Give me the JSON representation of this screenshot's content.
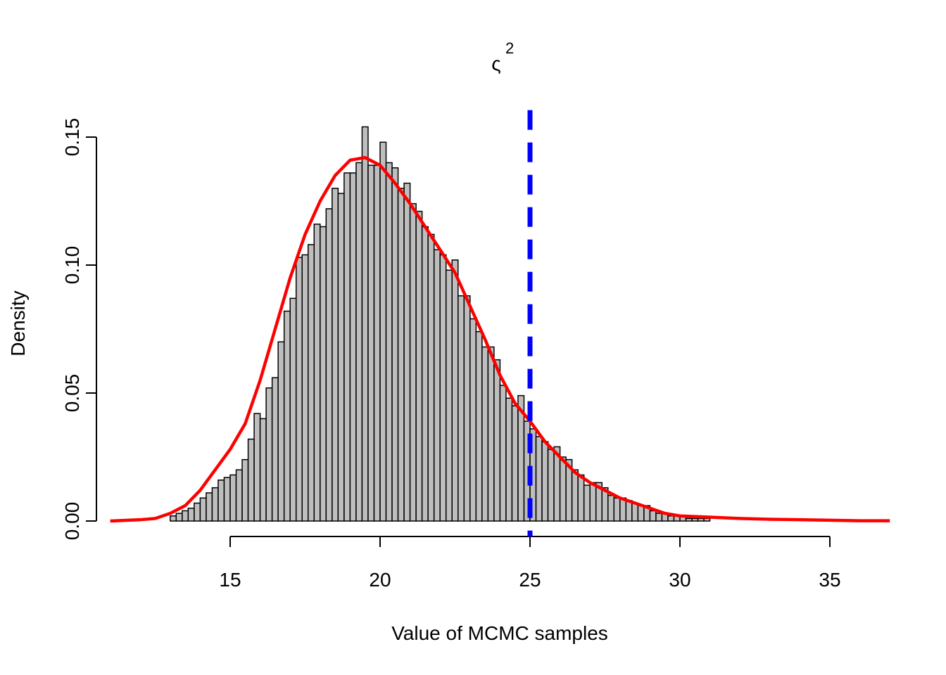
{
  "chart_data": {
    "type": "histogram",
    "title": "ς",
    "title_superscript": "2",
    "xlabel": "Value of MCMC samples",
    "ylabel": "Density",
    "bins": [
      13.0,
      13.2,
      13.4,
      13.6,
      13.8,
      14.0,
      14.2,
      14.4,
      14.6,
      14.8,
      15.0,
      15.2,
      15.4,
      15.6,
      15.8,
      16.0,
      16.2,
      16.4,
      16.6,
      16.8,
      17.0,
      17.2,
      17.4,
      17.6,
      17.8,
      18.0,
      18.2,
      18.4,
      18.6,
      18.8,
      19.0,
      19.2,
      19.4,
      19.6,
      19.8,
      20.0,
      20.2,
      20.4,
      20.6,
      20.8,
      21.0,
      21.2,
      21.4,
      21.6,
      21.8,
      22.0,
      22.2,
      22.4,
      22.6,
      22.8,
      23.0,
      23.2,
      23.4,
      23.6,
      23.8,
      24.0,
      24.2,
      24.4,
      24.6,
      24.8,
      25.0,
      25.2,
      25.4,
      25.6,
      25.8,
      26.0,
      26.2,
      26.4,
      26.6,
      26.8,
      27.0,
      27.2,
      27.4,
      27.6,
      27.8,
      28.0,
      28.2,
      28.4,
      28.6,
      28.8,
      29.0,
      29.2,
      29.4,
      29.6,
      29.8,
      30.0,
      30.2,
      30.4,
      30.6,
      30.8,
      31.0
    ],
    "values": [
      0.002,
      0.003,
      0.004,
      0.005,
      0.007,
      0.009,
      0.011,
      0.013,
      0.016,
      0.017,
      0.018,
      0.02,
      0.024,
      0.032,
      0.042,
      0.04,
      0.052,
      0.056,
      0.07,
      0.082,
      0.087,
      0.103,
      0.104,
      0.108,
      0.116,
      0.115,
      0.122,
      0.13,
      0.128,
      0.136,
      0.136,
      0.14,
      0.154,
      0.139,
      0.139,
      0.148,
      0.14,
      0.138,
      0.13,
      0.132,
      0.124,
      0.121,
      0.115,
      0.112,
      0.106,
      0.104,
      0.098,
      0.102,
      0.088,
      0.088,
      0.079,
      0.074,
      0.068,
      0.068,
      0.063,
      0.053,
      0.048,
      0.045,
      0.049,
      0.039,
      0.036,
      0.033,
      0.031,
      0.028,
      0.029,
      0.025,
      0.024,
      0.02,
      0.018,
      0.014,
      0.015,
      0.015,
      0.013,
      0.01,
      0.009,
      0.009,
      0.008,
      0.007,
      0.006,
      0.006,
      0.004,
      0.003,
      0.003,
      0.002,
      0.002,
      0.002,
      0.001,
      0.001,
      0.001,
      0.001
    ],
    "color": "#bebebe",
    "density": {
      "color": "#ff0000",
      "x": [
        11,
        12,
        12.5,
        13,
        13.5,
        14,
        14.5,
        15,
        15.5,
        16,
        16.5,
        17,
        17.5,
        18,
        18.5,
        19,
        19.5,
        20,
        20.5,
        21,
        21.5,
        22,
        22.5,
        23,
        23.5,
        24,
        24.5,
        25,
        25.5,
        26,
        26.5,
        27,
        27.5,
        28,
        28.5,
        29,
        29.5,
        30,
        31,
        32,
        33,
        34,
        35,
        36,
        37
      ],
      "y": [
        0,
        0.0005,
        0.001,
        0.003,
        0.006,
        0.012,
        0.02,
        0.028,
        0.038,
        0.055,
        0.075,
        0.095,
        0.112,
        0.125,
        0.135,
        0.141,
        0.142,
        0.139,
        0.132,
        0.124,
        0.115,
        0.106,
        0.097,
        0.084,
        0.071,
        0.057,
        0.046,
        0.039,
        0.031,
        0.025,
        0.019,
        0.015,
        0.012,
        0.009,
        0.007,
        0.005,
        0.003,
        0.002,
        0.0015,
        0.001,
        0.0007,
        0.0005,
        0.0003,
        0.0001,
        0.0001
      ]
    },
    "vline": {
      "value": 25,
      "color": "#0000ff"
    },
    "xlim": [
      11,
      37
    ],
    "ylim": [
      0,
      0.16
    ],
    "xticks": [
      15,
      20,
      25,
      30,
      35
    ],
    "yticks": [
      {
        "value": 0,
        "label": "0.00"
      },
      {
        "value": 0.05,
        "label": "0.05"
      },
      {
        "value": 0.1,
        "label": "0.10"
      },
      {
        "value": 0.15,
        "label": "0.15"
      }
    ]
  }
}
